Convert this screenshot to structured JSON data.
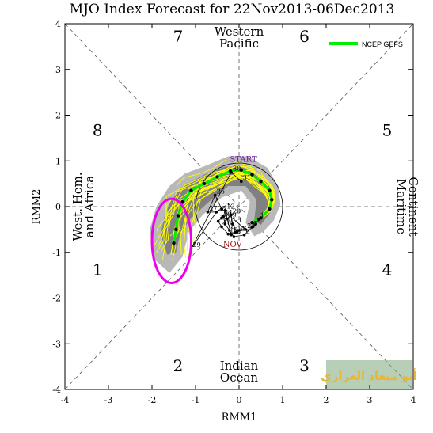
{
  "chart_data": {
    "type": "scatter",
    "title": "MJO Index Forecast for 22Nov2013-06Dec2013",
    "xlabel": "RMM1",
    "ylabel": "RMM2",
    "xlim": [
      -4,
      4
    ],
    "ylim": [
      -4,
      4
    ],
    "x_ticks": [
      "-4",
      "-3",
      "-2",
      "-1",
      "0",
      "1",
      "2",
      "3",
      "4"
    ],
    "y_ticks": [
      "-4",
      "-3",
      "-2",
      "-1",
      "0",
      "1",
      "2",
      "3",
      "4"
    ],
    "grid": "diagonal and axis dashed guide lines",
    "phase_labels": [
      {
        "text": "1",
        "x": -3.25,
        "y": -1.5
      },
      {
        "text": "2",
        "x": -1.4,
        "y": -3.6
      },
      {
        "text": "3",
        "x": 1.5,
        "y": -3.6
      },
      {
        "text": "4",
        "x": 3.4,
        "y": -1.5
      },
      {
        "text": "5",
        "x": 3.4,
        "y": 1.55
      },
      {
        "text": "6",
        "x": 1.5,
        "y": 3.6
      },
      {
        "text": "7",
        "x": -1.4,
        "y": 3.6
      },
      {
        "text": "8",
        "x": -3.25,
        "y": 1.55
      }
    ],
    "region_labels": {
      "top": [
        "Western",
        "Pacific"
      ],
      "bottom": [
        "Indian",
        "Ocean"
      ],
      "left": [
        "West. Hem.",
        "and Africa"
      ],
      "right": [
        "Maritime",
        "Continent"
      ]
    },
    "legend": {
      "label": "NCEP GEFS",
      "position": "top-right",
      "color": "#00ee00"
    },
    "annotations": [
      {
        "text": "START",
        "x": 0.1,
        "y": 0.98,
        "color": "#6a1fa0"
      },
      {
        "text": "NOV",
        "x": -0.15,
        "y": -0.88,
        "color": "#a01010"
      }
    ],
    "observed_path": {
      "color": "#000000",
      "points": [
        {
          "label": "1",
          "x": 0.45,
          "y": -0.28
        },
        {
          "label": "2",
          "x": 0.38,
          "y": -0.38
        },
        {
          "label": "5",
          "x": 0.3,
          "y": -0.45
        },
        {
          "label": "6",
          "x": 0.12,
          "y": -0.62
        },
        {
          "label": "7",
          "x": -0.12,
          "y": -0.66
        },
        {
          "label": "8",
          "x": -0.22,
          "y": -0.52
        },
        {
          "label": "10",
          "x": -0.32,
          "y": -0.38
        },
        {
          "label": "11",
          "x": -0.36,
          "y": -0.22
        },
        {
          "label": "12",
          "x": -0.32,
          "y": -0.08
        },
        {
          "label": "13",
          "x": -0.18,
          "y": -0.62
        },
        {
          "label": "14",
          "x": -0.08,
          "y": -0.56
        },
        {
          "label": "15",
          "x": -0.25,
          "y": -0.6
        },
        {
          "label": "16",
          "x": -0.4,
          "y": -0.44
        },
        {
          "label": "17",
          "x": -0.48,
          "y": -0.32
        },
        {
          "label": "18",
          "x": -0.4,
          "y": -0.25
        },
        {
          "label": "19",
          "x": -0.28,
          "y": -0.27
        },
        {
          "label": "20",
          "x": -0.18,
          "y": -0.18
        },
        {
          "label": "21",
          "x": -0.15,
          "y": -0.38
        },
        {
          "label": "23",
          "x": -0.05,
          "y": -0.55
        },
        {
          "label": "24",
          "x": 0.15,
          "y": -0.5
        },
        {
          "label": "25",
          "x": -0.4,
          "y": -0.05
        },
        {
          "label": "26",
          "x": -0.55,
          "y": 0.25
        },
        {
          "label": "27",
          "x": -0.72,
          "y": -0.12
        },
        {
          "label": "28",
          "x": -0.52,
          "y": -0.12
        },
        {
          "label": "29",
          "x": -1.1,
          "y": -0.92
        },
        {
          "label": "30",
          "x": -0.18,
          "y": 0.75
        },
        {
          "label": "31",
          "x": 0.05,
          "y": 0.55
        }
      ]
    },
    "ensemble_mean": {
      "color": "#00ee00",
      "points": [
        {
          "x": 0.3,
          "y": -0.35
        },
        {
          "x": 0.5,
          "y": -0.25
        },
        {
          "x": 0.7,
          "y": -0.05
        },
        {
          "x": 0.75,
          "y": 0.15
        },
        {
          "x": 0.7,
          "y": 0.35
        },
        {
          "x": 0.5,
          "y": 0.55
        },
        {
          "x": 0.3,
          "y": 0.7
        },
        {
          "x": 0.05,
          "y": 0.8
        },
        {
          "x": -0.2,
          "y": 0.78
        },
        {
          "x": -0.5,
          "y": 0.65
        },
        {
          "x": -0.8,
          "y": 0.5
        },
        {
          "x": -1.1,
          "y": 0.35
        },
        {
          "x": -1.3,
          "y": 0.1
        },
        {
          "x": -1.4,
          "y": -0.2
        },
        {
          "x": -1.45,
          "y": -0.5
        },
        {
          "x": -1.5,
          "y": -0.8
        }
      ]
    },
    "shading_outer": {
      "color": "#b8b8b8",
      "polygon": [
        [
          0.55,
          -0.55
        ],
        [
          0.8,
          -0.3
        ],
        [
          0.95,
          0.05
        ],
        [
          0.9,
          0.45
        ],
        [
          0.65,
          0.85
        ],
        [
          0.2,
          1.1
        ],
        [
          -0.25,
          1.1
        ],
        [
          -0.75,
          0.9
        ],
        [
          -1.25,
          0.72
        ],
        [
          -1.6,
          0.45
        ],
        [
          -1.9,
          0.0
        ],
        [
          -2.05,
          -0.5
        ],
        [
          -1.95,
          -1.15
        ],
        [
          -1.6,
          -1.45
        ],
        [
          -1.3,
          -1.1
        ],
        [
          -1.15,
          -0.55
        ],
        [
          -0.85,
          -0.2
        ],
        [
          -0.4,
          0.2
        ],
        [
          0.05,
          0.35
        ],
        [
          0.25,
          0.1
        ],
        [
          0.15,
          -0.35
        ],
        [
          0.35,
          -0.65
        ]
      ]
    },
    "shading_inner": {
      "color": "#808080",
      "polygon": [
        [
          0.5,
          -0.4
        ],
        [
          0.7,
          -0.15
        ],
        [
          0.8,
          0.15
        ],
        [
          0.7,
          0.45
        ],
        [
          0.45,
          0.68
        ],
        [
          0.1,
          0.85
        ],
        [
          -0.3,
          0.88
        ],
        [
          -0.75,
          0.72
        ],
        [
          -1.15,
          0.52
        ],
        [
          -1.5,
          0.25
        ],
        [
          -1.7,
          -0.15
        ],
        [
          -1.8,
          -0.6
        ],
        [
          -1.65,
          -1.05
        ],
        [
          -1.45,
          -1.0
        ],
        [
          -1.35,
          -0.6
        ],
        [
          -1.1,
          -0.25
        ],
        [
          -0.7,
          0.1
        ],
        [
          -0.25,
          0.45
        ],
        [
          0.15,
          0.45
        ],
        [
          0.4,
          0.15
        ],
        [
          0.35,
          -0.3
        ]
      ]
    },
    "ensemble_member_count": 20,
    "highlight_ellipse": {
      "color": "#ee00ee",
      "cx": -1.55,
      "cy": -0.75,
      "rx": 0.45,
      "ry": 0.92
    }
  },
  "watermark_text": "أبو ميعاد العراري"
}
